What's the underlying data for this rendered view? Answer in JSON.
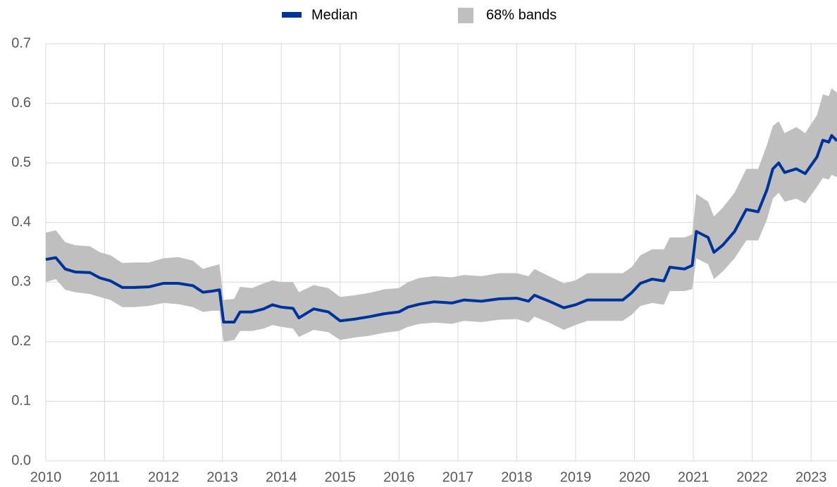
{
  "chart_data": {
    "type": "line",
    "x": [
      2010.0,
      2010.17,
      2010.33,
      2010.5,
      2010.75,
      2010.92,
      2011.1,
      2011.3,
      2011.5,
      2011.75,
      2012.0,
      2012.25,
      2012.5,
      2012.67,
      2012.83,
      2012.95,
      2013.02,
      2013.2,
      2013.3,
      2013.5,
      2013.7,
      2013.85,
      2014.0,
      2014.2,
      2014.3,
      2014.55,
      2014.8,
      2015.0,
      2015.25,
      2015.5,
      2015.75,
      2016.0,
      2016.15,
      2016.35,
      2016.6,
      2016.9,
      2017.1,
      2017.4,
      2017.7,
      2018.0,
      2018.2,
      2018.3,
      2018.55,
      2018.8,
      2019.0,
      2019.2,
      2019.5,
      2019.8,
      2019.95,
      2020.1,
      2020.3,
      2020.5,
      2020.6,
      2020.85,
      2020.98,
      2021.05,
      2021.25,
      2021.35,
      2021.5,
      2021.7,
      2021.9,
      2022.1,
      2022.25,
      2022.35,
      2022.45,
      2022.55,
      2022.75,
      2022.9,
      2023.1,
      2023.2,
      2023.3,
      2023.35,
      2023.44
    ],
    "series": [
      {
        "name": "Median",
        "color": "#003399",
        "values": [
          0.338,
          0.341,
          0.322,
          0.317,
          0.316,
          0.307,
          0.302,
          0.291,
          0.291,
          0.292,
          0.298,
          0.298,
          0.294,
          0.283,
          0.285,
          0.287,
          0.233,
          0.233,
          0.25,
          0.25,
          0.255,
          0.262,
          0.258,
          0.256,
          0.24,
          0.255,
          0.25,
          0.235,
          0.238,
          0.242,
          0.247,
          0.25,
          0.258,
          0.263,
          0.267,
          0.265,
          0.27,
          0.268,
          0.272,
          0.273,
          0.268,
          0.278,
          0.268,
          0.257,
          0.262,
          0.27,
          0.27,
          0.27,
          0.282,
          0.298,
          0.305,
          0.302,
          0.325,
          0.322,
          0.328,
          0.385,
          0.375,
          0.35,
          0.362,
          0.385,
          0.422,
          0.418,
          0.455,
          0.49,
          0.5,
          0.484,
          0.49,
          0.482,
          0.51,
          0.538,
          0.535,
          0.546,
          0.537
        ]
      }
    ],
    "band": {
      "name": "68% bands",
      "color": "#bfbfbf",
      "lower": [
        0.3,
        0.305,
        0.287,
        0.283,
        0.28,
        0.275,
        0.27,
        0.258,
        0.258,
        0.26,
        0.265,
        0.263,
        0.258,
        0.25,
        0.252,
        0.252,
        0.2,
        0.203,
        0.218,
        0.218,
        0.222,
        0.228,
        0.225,
        0.222,
        0.208,
        0.22,
        0.216,
        0.203,
        0.207,
        0.21,
        0.215,
        0.218,
        0.225,
        0.23,
        0.232,
        0.23,
        0.235,
        0.233,
        0.237,
        0.238,
        0.232,
        0.242,
        0.232,
        0.22,
        0.228,
        0.235,
        0.235,
        0.235,
        0.245,
        0.26,
        0.265,
        0.262,
        0.285,
        0.285,
        0.288,
        0.34,
        0.33,
        0.305,
        0.318,
        0.34,
        0.37,
        0.37,
        0.405,
        0.44,
        0.45,
        0.435,
        0.44,
        0.432,
        0.46,
        0.475,
        0.472,
        0.48,
        0.476
      ],
      "upper": [
        0.383,
        0.387,
        0.367,
        0.362,
        0.36,
        0.35,
        0.345,
        0.332,
        0.333,
        0.333,
        0.34,
        0.342,
        0.336,
        0.322,
        0.327,
        0.33,
        0.27,
        0.272,
        0.292,
        0.29,
        0.298,
        0.303,
        0.3,
        0.3,
        0.283,
        0.295,
        0.29,
        0.275,
        0.278,
        0.282,
        0.288,
        0.29,
        0.3,
        0.307,
        0.31,
        0.308,
        0.312,
        0.31,
        0.315,
        0.315,
        0.31,
        0.322,
        0.31,
        0.298,
        0.303,
        0.315,
        0.315,
        0.315,
        0.325,
        0.345,
        0.355,
        0.355,
        0.375,
        0.375,
        0.38,
        0.448,
        0.435,
        0.41,
        0.425,
        0.45,
        0.49,
        0.49,
        0.53,
        0.562,
        0.57,
        0.55,
        0.56,
        0.55,
        0.58,
        0.615,
        0.612,
        0.625,
        0.618
      ]
    },
    "xlim": [
      2010,
      2023.44
    ],
    "xticks": [
      2010,
      2011,
      2012,
      2013,
      2014,
      2015,
      2016,
      2017,
      2018,
      2019,
      2020,
      2021,
      2022,
      2023
    ],
    "ylim": [
      0,
      0.7
    ],
    "yticks": [
      {
        "value": 0,
        "label": "0.0"
      },
      0.1,
      0.2,
      0.3,
      0.4,
      0.5,
      0.6,
      0.7
    ],
    "grid": true,
    "legend": "top"
  }
}
